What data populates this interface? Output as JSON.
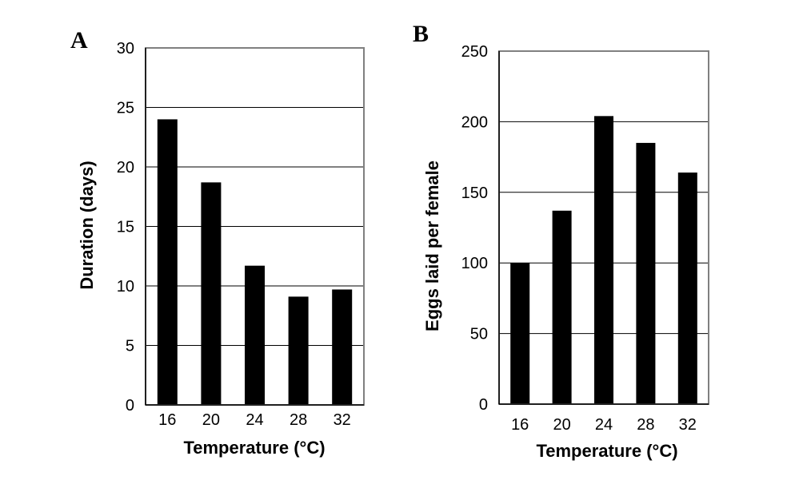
{
  "chart_data": [
    {
      "type": "bar",
      "panel_label": "A",
      "title": "",
      "xlabel": "Temperature (°C)",
      "ylabel": "Duration (days)",
      "categories": [
        "16",
        "20",
        "24",
        "28",
        "32"
      ],
      "values": [
        24,
        18.7,
        11.7,
        9.1,
        9.7
      ],
      "ylim": [
        0,
        30
      ],
      "yticks": [
        "0",
        "5",
        "10",
        "15",
        "20",
        "25",
        "30"
      ],
      "grid": true,
      "bar_color": "#000000"
    },
    {
      "type": "bar",
      "panel_label": "B",
      "title": "",
      "xlabel": "Temperature (°C)",
      "ylabel": "Eggs laid per female",
      "categories": [
        "16",
        "20",
        "24",
        "28",
        "32"
      ],
      "values": [
        100,
        137,
        204,
        185,
        164
      ],
      "ylim": [
        0,
        250
      ],
      "yticks": [
        "0",
        "50",
        "100",
        "150",
        "200",
        "250"
      ],
      "grid": true,
      "bar_color": "#000000"
    }
  ]
}
